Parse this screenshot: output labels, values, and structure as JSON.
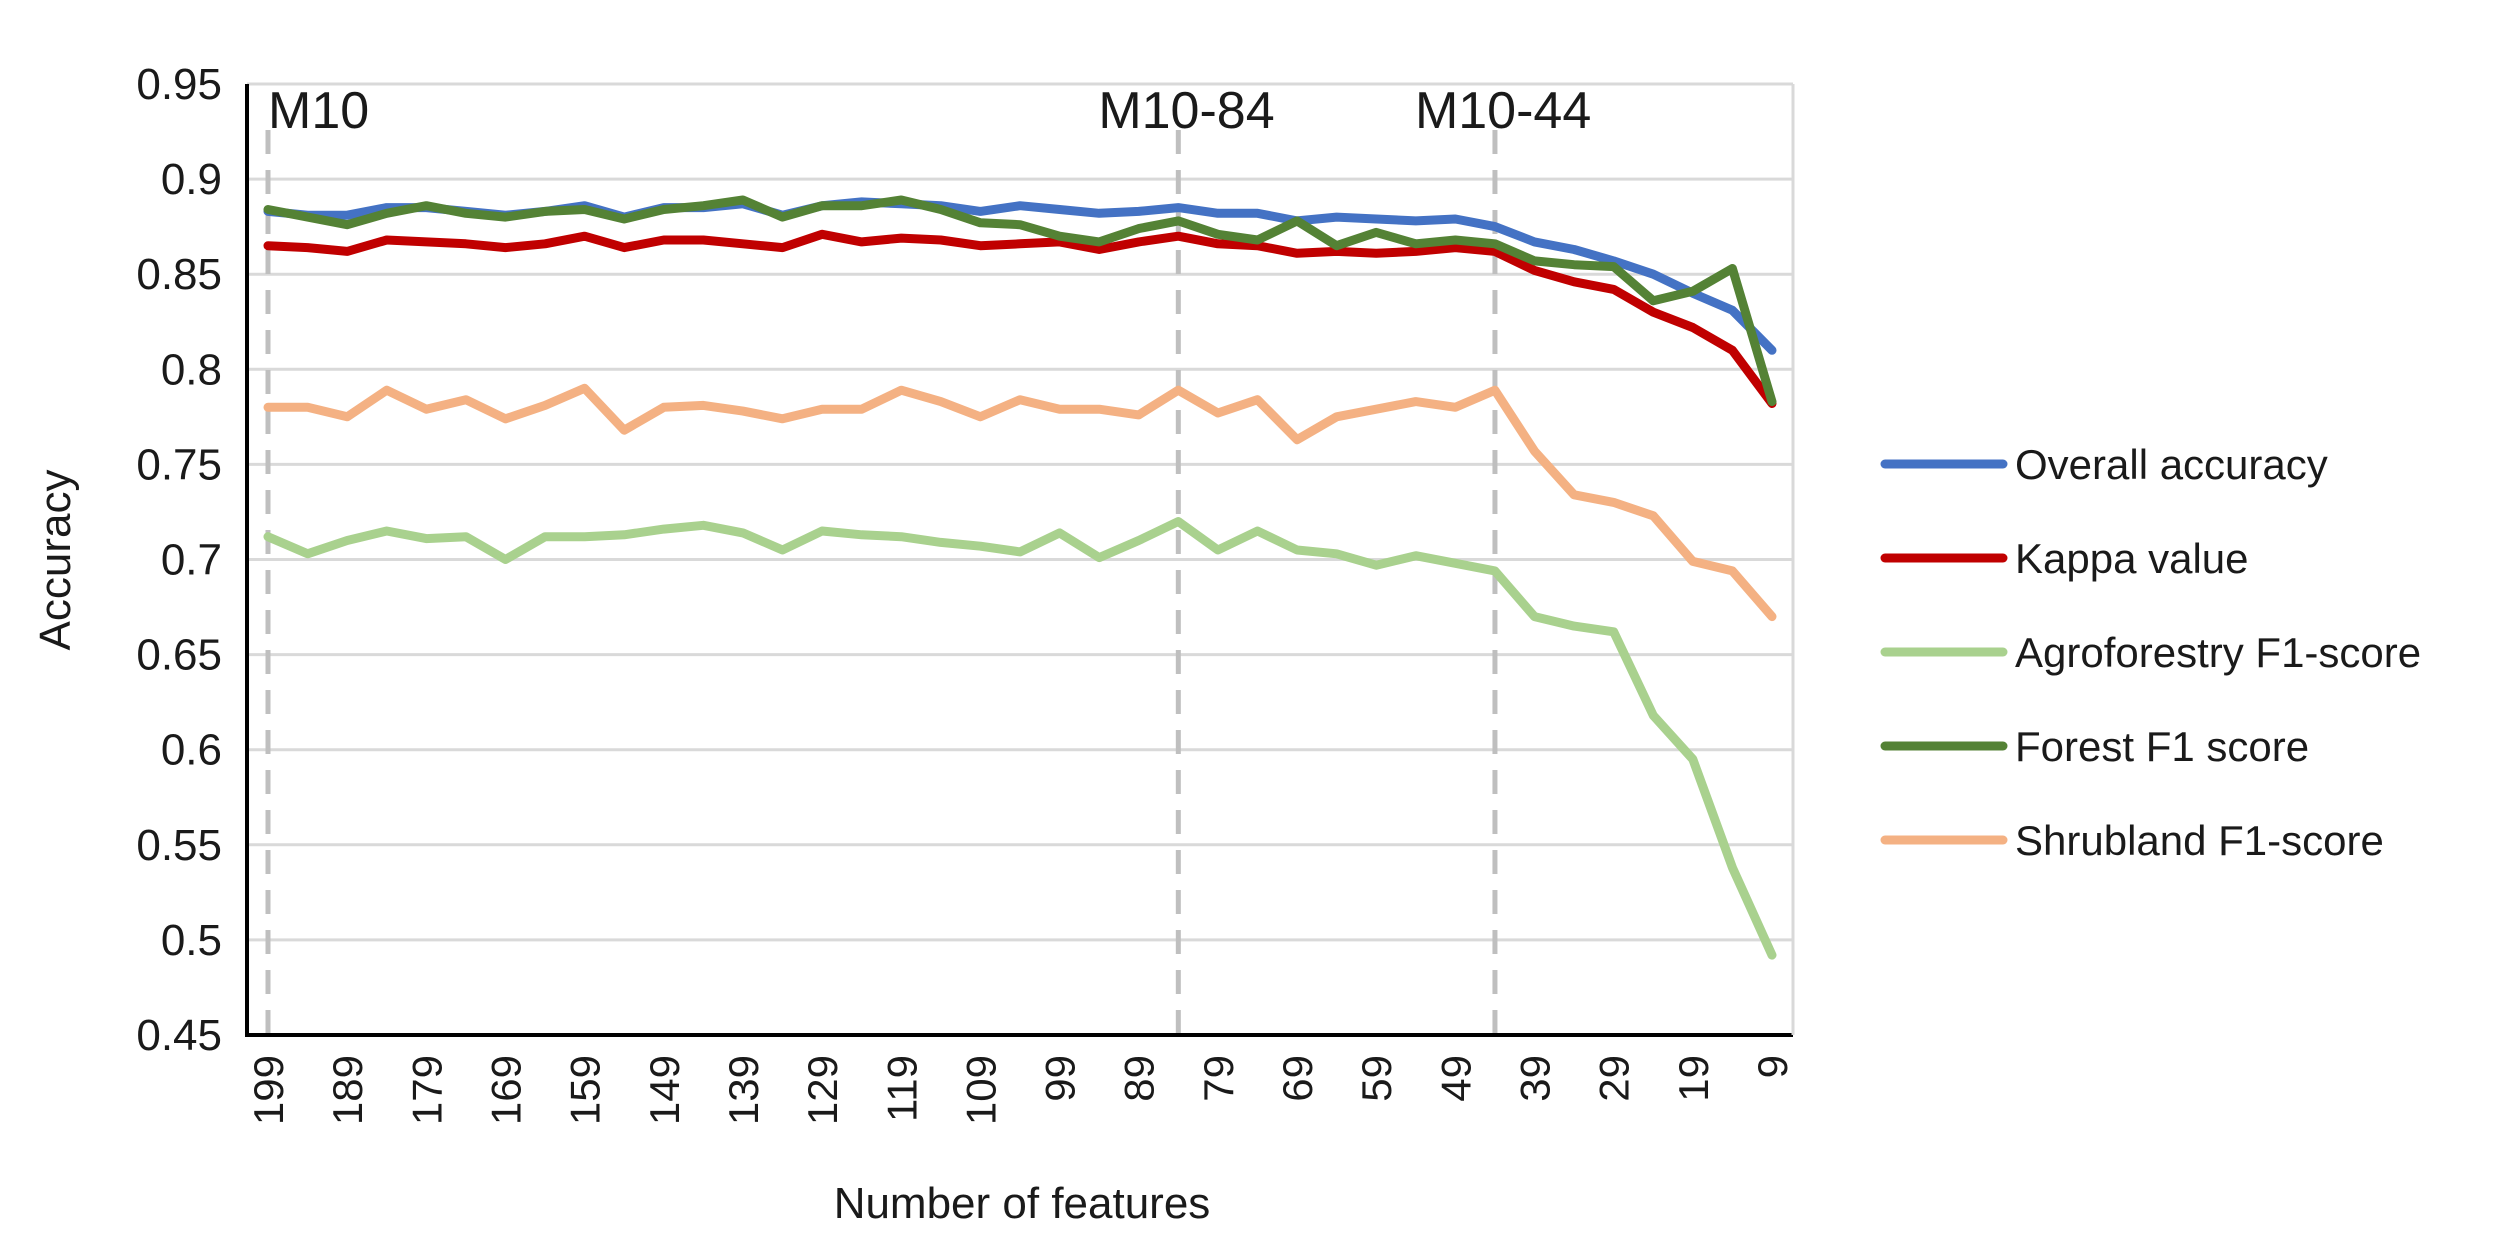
{
  "chart_data": {
    "type": "line",
    "title": "",
    "xlabel": "Number of features",
    "ylabel": "Accuracy",
    "ylim": [
      0.45,
      0.95
    ],
    "yticks": [
      "0.45",
      "0.5",
      "0.55",
      "0.6",
      "0.65",
      "0.7",
      "0.75",
      "0.8",
      "0.85",
      "0.9",
      "0.95"
    ],
    "grid": true,
    "legend_position": "right",
    "x": [
      199,
      194,
      189,
      184,
      179,
      174,
      169,
      164,
      159,
      154,
      149,
      144,
      139,
      134,
      129,
      124,
      119,
      114,
      109,
      104,
      99,
      94,
      89,
      84,
      79,
      74,
      69,
      64,
      59,
      54,
      49,
      44,
      39,
      34,
      29,
      24,
      19,
      14,
      9
    ],
    "x_tick_labels": [
      "199",
      "189",
      "179",
      "169",
      "159",
      "149",
      "139",
      "129",
      "119",
      "109",
      "99",
      "89",
      "79",
      "69",
      "59",
      "49",
      "39",
      "29",
      "19",
      "9"
    ],
    "annotations": [
      {
        "label": "M10",
        "x": 199
      },
      {
        "label": "M10-84",
        "x": 84
      },
      {
        "label": "M10-44",
        "x": 44
      }
    ],
    "series": [
      {
        "name": "Overall accuracy",
        "color": "#4472C4",
        "values": [
          0.883,
          0.881,
          0.881,
          0.885,
          0.885,
          0.883,
          0.881,
          0.883,
          0.886,
          0.88,
          0.885,
          0.885,
          0.887,
          0.881,
          0.886,
          0.888,
          0.887,
          0.886,
          0.883,
          0.886,
          0.884,
          0.882,
          0.883,
          0.885,
          0.882,
          0.882,
          0.878,
          0.88,
          0.879,
          0.878,
          0.879,
          0.875,
          0.867,
          0.863,
          0.857,
          0.85,
          0.84,
          0.831,
          0.81
        ]
      },
      {
        "name": "Kappa value",
        "color": "#C00000",
        "values": [
          0.865,
          0.864,
          0.862,
          0.868,
          0.867,
          0.866,
          0.864,
          0.866,
          0.87,
          0.864,
          0.868,
          0.868,
          0.866,
          0.864,
          0.871,
          0.867,
          0.869,
          0.868,
          0.865,
          0.866,
          0.867,
          0.863,
          0.867,
          0.87,
          0.866,
          0.865,
          0.861,
          0.862,
          0.861,
          0.862,
          0.864,
          0.862,
          0.852,
          0.846,
          0.842,
          0.83,
          0.822,
          0.81,
          0.782
        ]
      },
      {
        "name": "Agroforestry F1-score",
        "color": "#A9D18E",
        "values": [
          0.712,
          0.703,
          0.71,
          0.715,
          0.711,
          0.712,
          0.7,
          0.712,
          0.712,
          0.713,
          0.716,
          0.718,
          0.714,
          0.705,
          0.715,
          0.713,
          0.712,
          0.709,
          0.707,
          0.704,
          0.714,
          0.701,
          0.71,
          0.72,
          0.705,
          0.715,
          0.705,
          0.703,
          0.697,
          0.702,
          0.698,
          0.694,
          0.67,
          0.665,
          0.662,
          0.618,
          0.595,
          0.538,
          0.492
        ]
      },
      {
        "name": "Forest F1 score",
        "color": "#548235",
        "values": [
          0.884,
          0.88,
          0.876,
          0.882,
          0.886,
          0.882,
          0.88,
          0.883,
          0.884,
          0.879,
          0.884,
          0.886,
          0.889,
          0.88,
          0.886,
          0.886,
          0.889,
          0.884,
          0.877,
          0.876,
          0.87,
          0.867,
          0.874,
          0.878,
          0.871,
          0.868,
          0.878,
          0.865,
          0.872,
          0.866,
          0.868,
          0.866,
          0.857,
          0.855,
          0.854,
          0.836,
          0.841,
          0.853,
          0.783
        ]
      },
      {
        "name": "Shrubland F1-score",
        "color": "#F4B183",
        "values": [
          0.78,
          0.78,
          0.775,
          0.789,
          0.779,
          0.784,
          0.774,
          0.781,
          0.79,
          0.768,
          0.78,
          0.781,
          0.778,
          0.774,
          0.779,
          0.779,
          0.789,
          0.783,
          0.775,
          0.784,
          0.779,
          0.779,
          0.776,
          0.789,
          0.777,
          0.784,
          0.763,
          0.775,
          0.779,
          0.783,
          0.78,
          0.789,
          0.757,
          0.734,
          0.73,
          0.723,
          0.699,
          0.694,
          0.67
        ]
      }
    ]
  }
}
